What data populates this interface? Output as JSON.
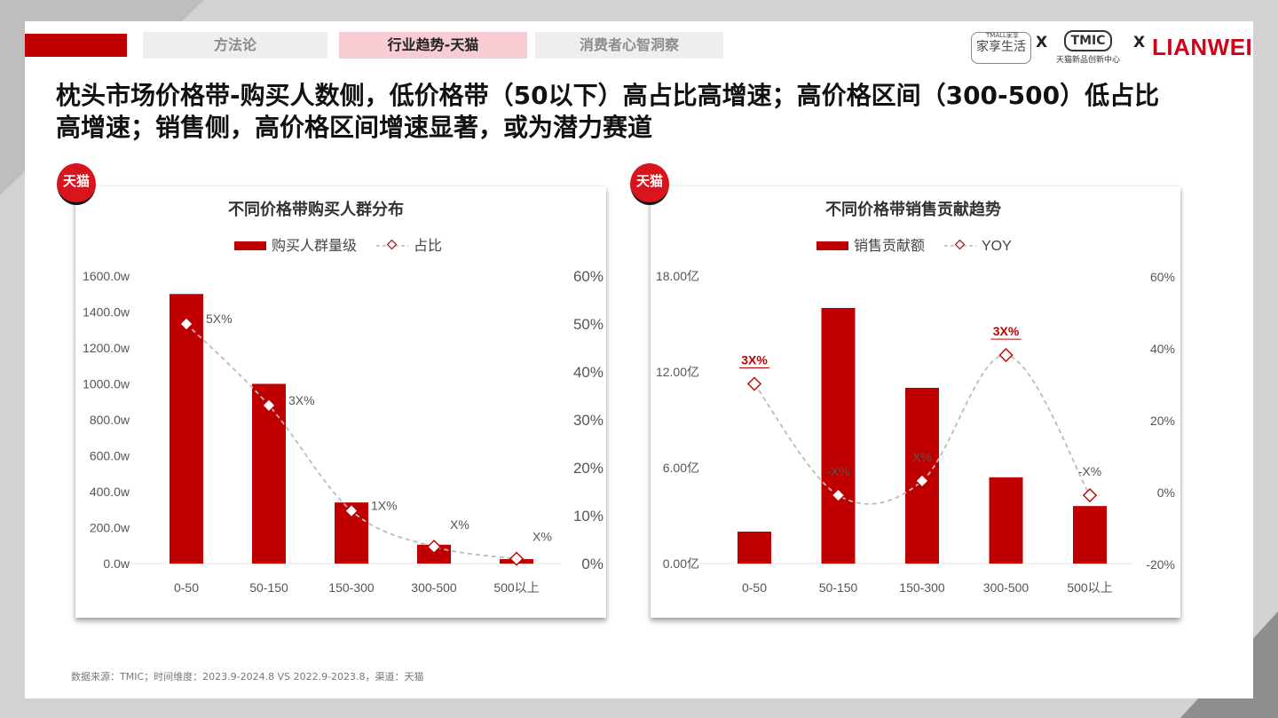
{
  "nav": {
    "tabs": [
      {
        "label": "方法论"
      },
      {
        "label": "行业趋势-天猫"
      },
      {
        "label": "消费者心智洞察"
      }
    ]
  },
  "logos": {
    "jiaxiang_top": "TMALL家享",
    "jiaxiang": "家享生活",
    "x1": "X",
    "tmic": "TMIC",
    "tmic_sub": "天猫新品创新中心",
    "x2": "X",
    "lianwei": "LIANWEI"
  },
  "page_title_line1": "枕头市场价格带-购买人数侧，低价格带（50以下）高占比高增速；高价格区间（300-500）低占比",
  "page_title_line2": "高增速；销售侧，高价格区间增速显著，或为潜力赛道",
  "badges": {
    "left": "天猫",
    "right": "天猫"
  },
  "colors": {
    "bar": "#c00000",
    "line": "#bbbbbb",
    "accent_label": "#c00000"
  },
  "footer": "数据来源：TMIC；时间维度：2023.9-2024.8 VS 2022.9-2023.8，渠道：天猫",
  "chart_data": [
    {
      "type": "bar",
      "title": "不同价格带购买人群分布",
      "categories": [
        "0-50",
        "50-150",
        "150-300",
        "300-500",
        "500以上"
      ],
      "series": [
        {
          "name": "购买人群量级",
          "kind": "bar",
          "axis": "left",
          "values": [
            1500,
            1000,
            340,
            105,
            25
          ]
        },
        {
          "name": "占比",
          "kind": "line",
          "axis": "right",
          "values": [
            50,
            33,
            11,
            3.5,
            1
          ],
          "labels": [
            "5X%",
            "3X%",
            "1X%",
            "X%",
            "X%"
          ]
        }
      ],
      "y_left": {
        "ticks": [
          "0.0w",
          "200.0w",
          "400.0w",
          "600.0w",
          "800.0w",
          "1000.0w",
          "1200.0w",
          "1400.0w",
          "1600.0w"
        ],
        "ylim": [
          0,
          1600
        ]
      },
      "y_right": {
        "ticks": [
          "0%",
          "10%",
          "20%",
          "30%",
          "40%",
          "50%",
          "60%"
        ],
        "ylim": [
          0,
          60
        ]
      },
      "legend": "top-center",
      "grid": false
    },
    {
      "type": "bar",
      "title": "不同价格带销售贡献趋势",
      "categories": [
        "0-50",
        "50-150",
        "150-300",
        "300-500",
        "500以上"
      ],
      "series": [
        {
          "name": "销售贡献额",
          "kind": "bar",
          "axis": "left",
          "values": [
            2.0,
            16.0,
            11.0,
            5.4,
            3.6
          ]
        },
        {
          "name": "YOY",
          "kind": "line",
          "axis": "right",
          "values": [
            30,
            -1,
            3,
            38,
            -1
          ],
          "labels": [
            "3X%",
            "-X%",
            "X%",
            "3X%",
            "-X%"
          ],
          "label_highlight": [
            true,
            false,
            false,
            true,
            false
          ]
        }
      ],
      "y_left": {
        "ticks": [
          "0.00亿",
          "6.00亿",
          "12.00亿",
          "18.00亿"
        ],
        "ylim": [
          0,
          18
        ]
      },
      "y_right": {
        "ticks": [
          "-20%",
          "0%",
          "20%",
          "40%",
          "60%"
        ],
        "ylim": [
          -20,
          60
        ]
      },
      "legend": "top-center",
      "grid": false
    }
  ]
}
